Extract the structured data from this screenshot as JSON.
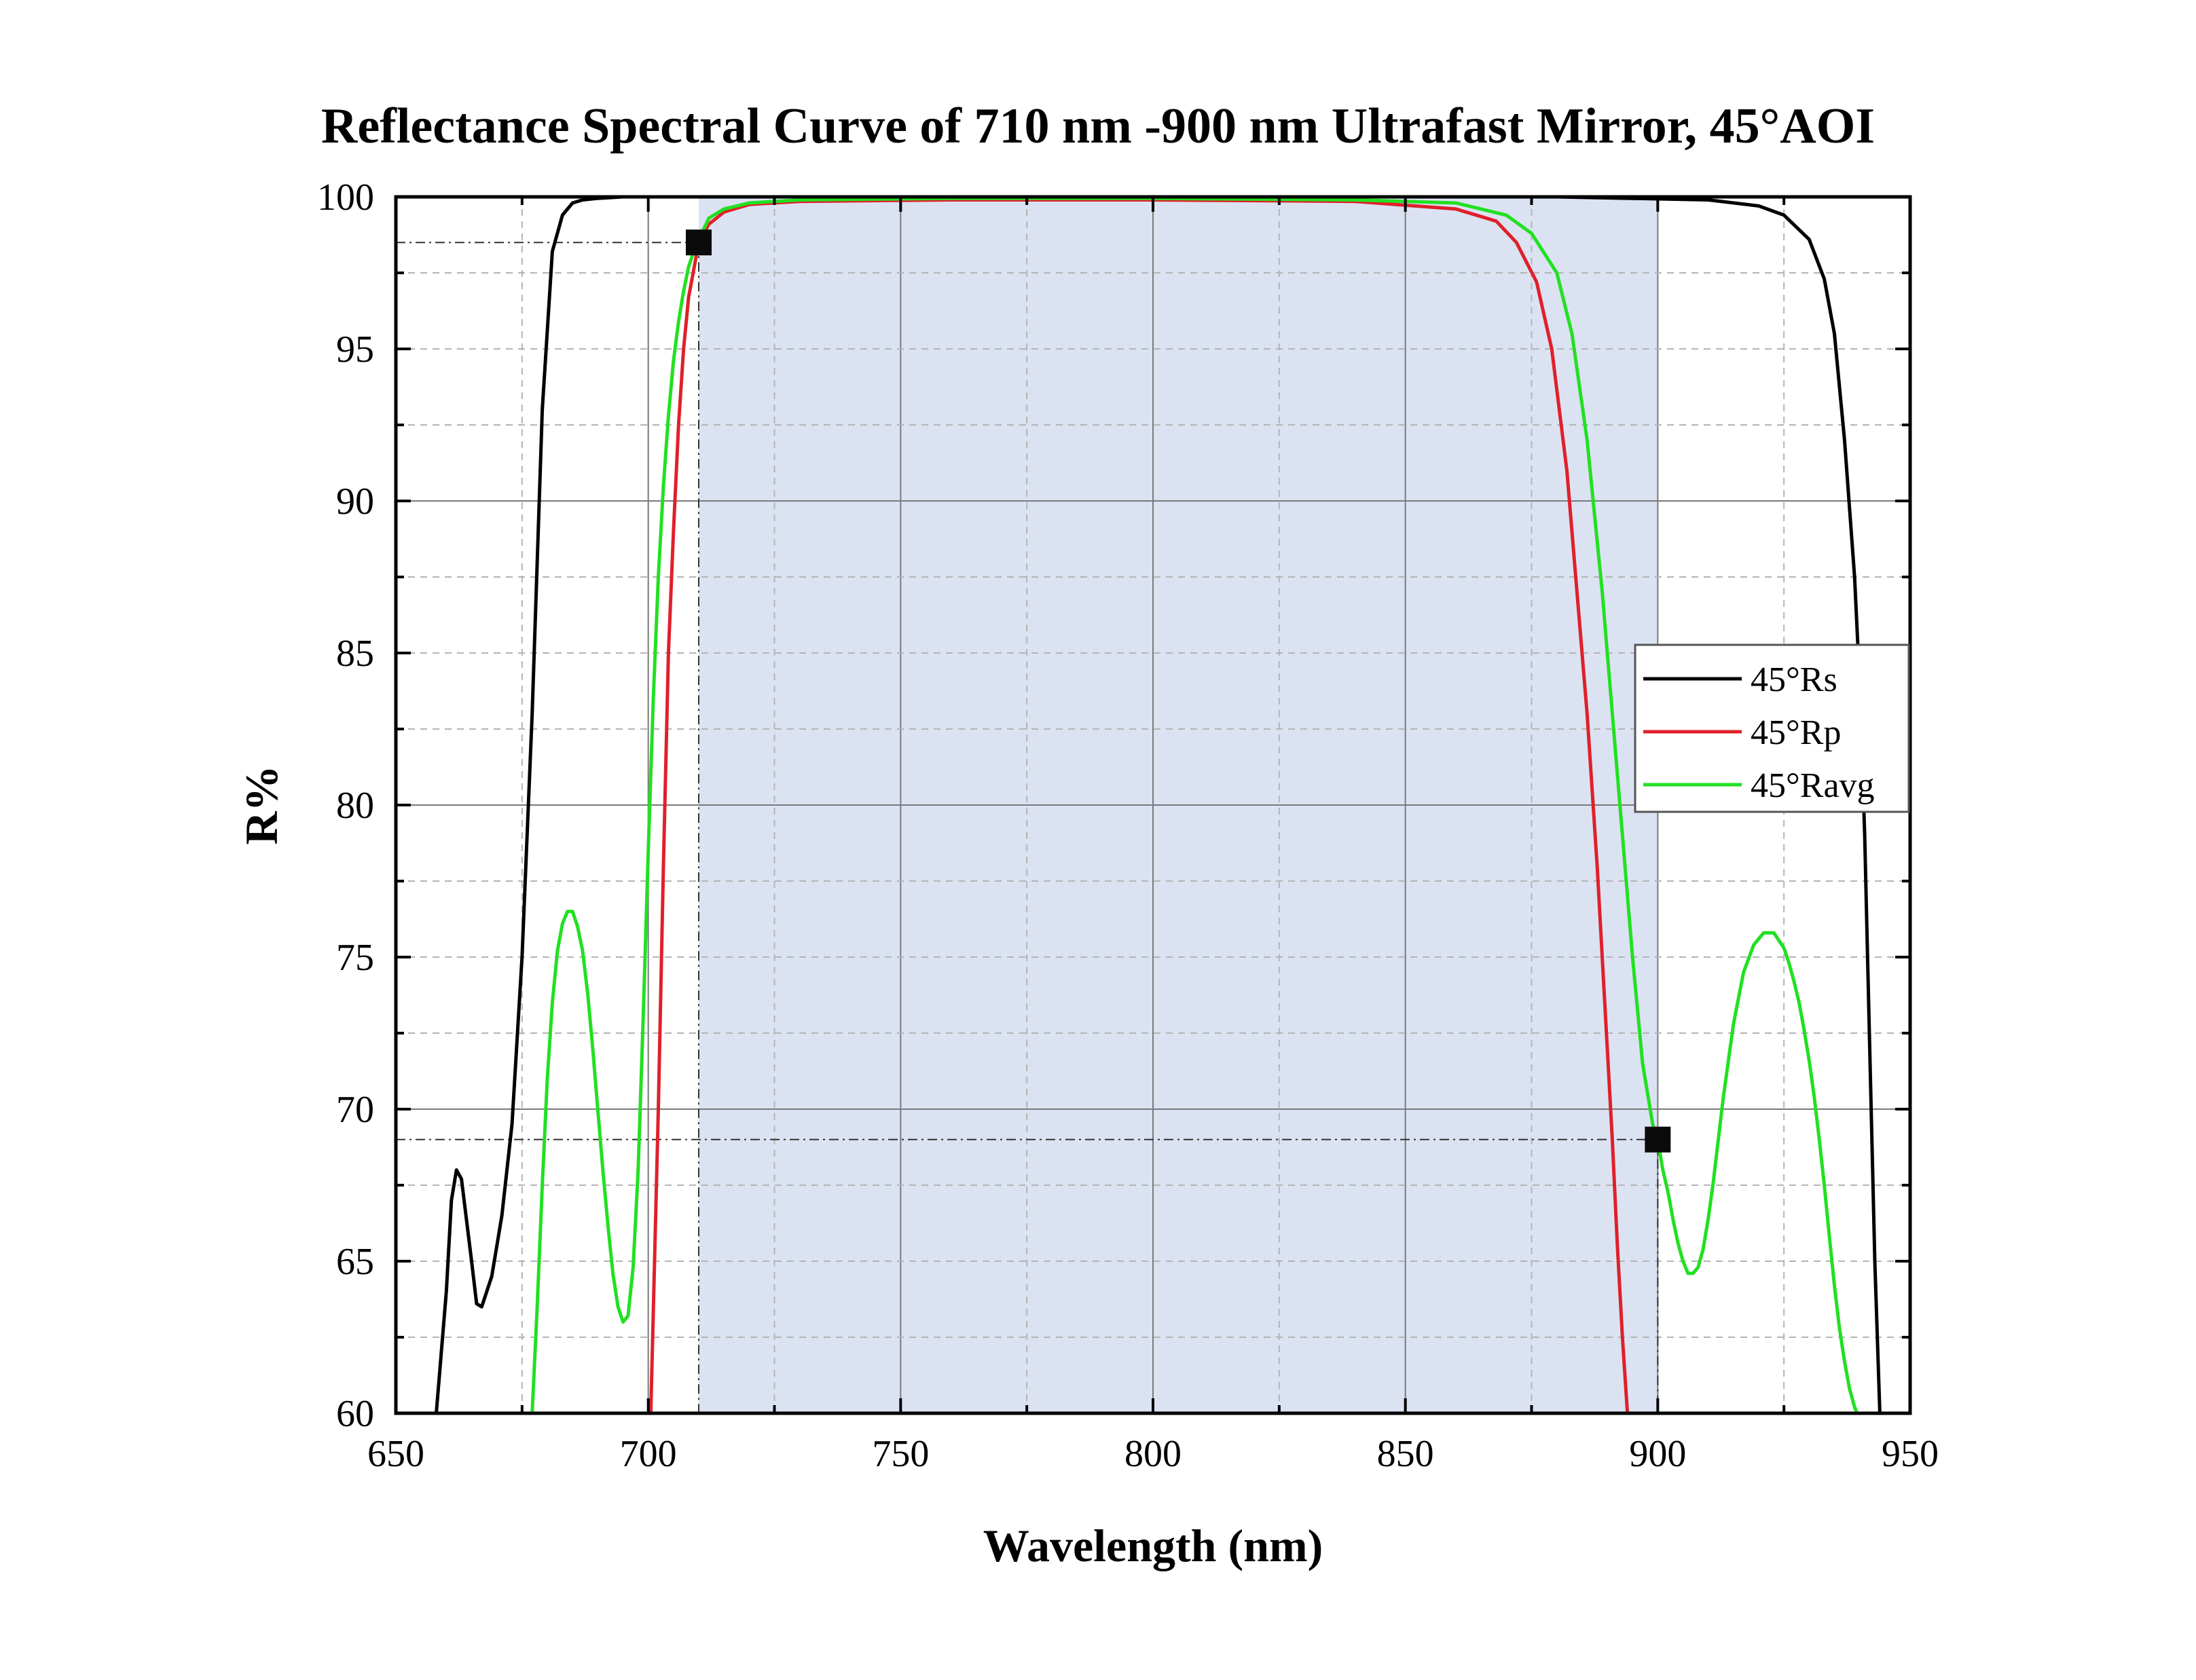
{
  "chart_data": {
    "type": "line",
    "title": "Reflectance Spectral Curve of  710 nm -900 nm Ultrafast Mirror,  45°AOI",
    "xlabel": "Wavelength (nm)",
    "ylabel": "R%",
    "xlim": [
      650,
      950
    ],
    "ylim": [
      60,
      100
    ],
    "x_ticks": [
      "650",
      "700",
      "750",
      "800",
      "850",
      "900",
      "950"
    ],
    "y_ticks": [
      "60",
      "65",
      "70",
      "75",
      "80",
      "85",
      "90",
      "95",
      "100"
    ],
    "grid": true,
    "legend_position": "right",
    "highlight_band": {
      "x_start": 710,
      "x_end": 900,
      "color": "#dbe3f2"
    },
    "markers": [
      {
        "x": 710,
        "y": 98.5
      },
      {
        "x": 900,
        "y": 69.0
      }
    ],
    "series": [
      {
        "name": "45°Rs",
        "color": "#000000",
        "x": [
          658,
          660,
          661,
          662,
          663,
          665,
          666,
          667,
          669,
          671,
          673,
          675,
          677,
          679,
          681,
          683,
          685,
          687,
          690,
          695,
          700,
          720,
          800,
          880,
          910,
          920,
          925,
          930,
          933,
          935,
          937,
          939,
          940,
          941,
          942,
          943,
          944
        ],
        "y": [
          60,
          64,
          67,
          68,
          67.7,
          65,
          63.6,
          63.5,
          64.5,
          66.5,
          69.5,
          75,
          83,
          93,
          98.2,
          99.4,
          99.8,
          99.9,
          99.95,
          100,
          100,
          100,
          100,
          100,
          99.9,
          99.7,
          99.4,
          98.6,
          97.3,
          95.5,
          92.0,
          87.5,
          84.0,
          79.0,
          72.0,
          65.0,
          60.0
        ]
      },
      {
        "name": "45°Rp",
        "color": "#e0202a",
        "x": [
          700.5,
          702,
          703,
          704,
          705,
          706,
          707,
          708,
          709,
          710,
          712,
          715,
          720,
          730,
          760,
          800,
          840,
          860,
          868,
          872,
          876,
          879,
          882,
          884,
          886,
          888,
          890,
          891,
          892,
          893,
          894
        ],
        "y": [
          60,
          70,
          78,
          85,
          89,
          92.5,
          95,
          96.7,
          97.6,
          98.5,
          99.1,
          99.5,
          99.75,
          99.85,
          99.9,
          99.9,
          99.85,
          99.6,
          99.2,
          98.5,
          97.2,
          95.0,
          91.0,
          87.0,
          83.0,
          78.0,
          72.0,
          69.0,
          65.5,
          62.5,
          60.0
        ]
      },
      {
        "name": "45°Ravg",
        "color": "#22e022",
        "x": [
          677,
          678,
          679,
          680,
          681,
          682,
          683,
          684,
          685,
          686,
          687,
          688,
          689,
          690,
          691,
          692,
          693,
          694,
          695,
          696,
          697,
          698,
          699,
          700,
          701,
          702,
          703,
          704,
          705,
          706,
          707,
          708,
          709,
          710,
          712,
          715,
          720,
          730,
          760,
          800,
          840,
          860,
          870,
          875,
          880,
          883,
          886,
          889,
          892,
          895,
          897,
          899,
          900,
          901,
          902,
          903,
          904,
          905,
          906,
          907,
          908,
          909,
          910,
          911,
          912,
          913,
          915,
          917,
          919,
          921,
          923,
          925,
          926,
          927,
          928,
          929,
          930,
          931,
          932,
          933,
          934,
          935,
          936,
          937,
          938,
          939,
          939.5
        ],
        "y": [
          60,
          63.5,
          67.5,
          71,
          73.5,
          75.2,
          76.1,
          76.5,
          76.5,
          76,
          75.2,
          73.8,
          72.0,
          70.0,
          68.0,
          66.2,
          64.6,
          63.5,
          63.0,
          63.2,
          64.8,
          68.0,
          73.0,
          78.5,
          83.5,
          87.5,
          90.5,
          92.8,
          94.6,
          95.9,
          96.9,
          97.7,
          98.2,
          98.6,
          99.3,
          99.6,
          99.8,
          99.9,
          99.95,
          99.95,
          99.9,
          99.8,
          99.4,
          98.8,
          97.5,
          95.5,
          92.0,
          87.0,
          81.0,
          75.0,
          71.5,
          69.5,
          69.0,
          68.0,
          67.3,
          66.4,
          65.6,
          65.0,
          64.6,
          64.6,
          64.8,
          65.4,
          66.4,
          67.6,
          69.0,
          70.4,
          72.8,
          74.5,
          75.4,
          75.8,
          75.8,
          75.3,
          74.8,
          74.2,
          73.5,
          72.6,
          71.6,
          70.4,
          69.0,
          67.5,
          65.8,
          64.2,
          62.8,
          61.7,
          60.8,
          60.2,
          60.0
        ]
      }
    ]
  }
}
